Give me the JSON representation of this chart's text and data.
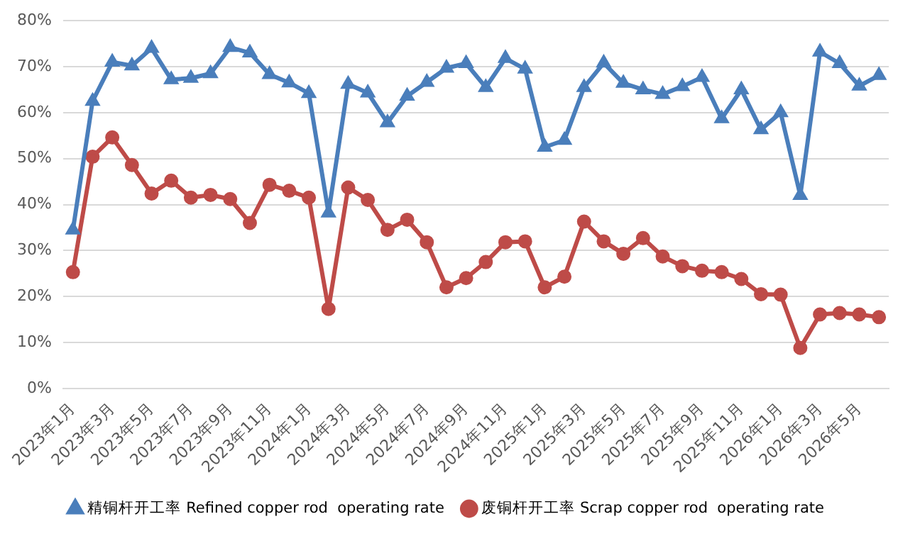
{
  "chart_data": {
    "type": "line",
    "categories": [
      "2023年1月",
      null,
      "2023年3月",
      null,
      "2023年5月",
      null,
      "2023年7月",
      null,
      "2023年9月",
      null,
      "2023年11月",
      null,
      "2024年1月",
      null,
      "2024年3月",
      null,
      "2024年5月",
      null,
      "2024年7月",
      null,
      "2024年9月",
      null,
      "2024年11月",
      null,
      "2025年1月",
      null,
      "2025年3月",
      null,
      "2025年5月",
      null,
      "2025年7月",
      null,
      "2025年9月",
      null,
      "2025年11月",
      null,
      "2026年1月",
      null,
      "2026年3月",
      null,
      "2026年5月",
      null
    ],
    "series": [
      {
        "name": "精铜杆开工率 Refined copper rod  operating rate",
        "color": "#4a7ebb",
        "marker": "triangle",
        "values": [
          34.5,
          62.5,
          71,
          70.2,
          74,
          67.2,
          67.5,
          68.5,
          74.2,
          73,
          68.3,
          66.5,
          64.2,
          38.2,
          66.2,
          64.3,
          57.8,
          63.6,
          66.6,
          69.7,
          70.7,
          65.5,
          71.8,
          69.5,
          52.5,
          54,
          65.5,
          70.8,
          66.4,
          65,
          64,
          65.7,
          67.7,
          58.7,
          65,
          56.3,
          60,
          42,
          73.2,
          70.7,
          65.8,
          68.1
        ]
      },
      {
        "name": "废铜杆开工率 Scrap copper rod  operating rate",
        "color": "#be4b48",
        "marker": "circle",
        "values": [
          25.3,
          50.4,
          54.6,
          48.6,
          42.4,
          45.2,
          41.5,
          42.1,
          41.2,
          36,
          44.3,
          43,
          41.5,
          17.3,
          43.7,
          41,
          34.5,
          36.7,
          31.8,
          22,
          24,
          27.5,
          31.8,
          32,
          22,
          24.3,
          36.3,
          32,
          29.3,
          32.7,
          28.7,
          26.6,
          25.6,
          25.3,
          23.8,
          20.5,
          20.4,
          8.8,
          16.1,
          16.4,
          16.1,
          15.5
        ]
      }
    ],
    "ylim": [
      0,
      80
    ],
    "yticks": [
      {
        "value": 0,
        "label": "0%"
      },
      {
        "value": 10,
        "label": "10%"
      },
      {
        "value": 20,
        "label": "20%"
      },
      {
        "value": 30,
        "label": "30%"
      },
      {
        "value": 40,
        "label": "40%"
      },
      {
        "value": 50,
        "label": "50%"
      },
      {
        "value": 60,
        "label": "60%"
      },
      {
        "value": 70,
        "label": "70%"
      },
      {
        "value": 80,
        "label": "80%"
      }
    ],
    "grid": "y",
    "legend": "bottom",
    "line_style": "solid"
  }
}
